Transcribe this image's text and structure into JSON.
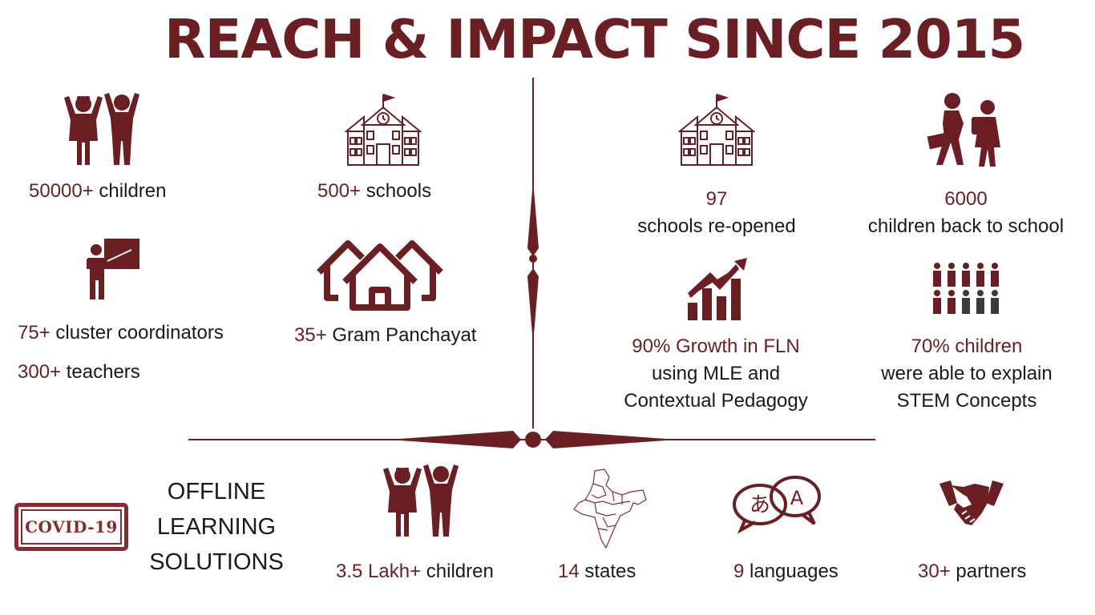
{
  "title": "REACH & IMPACT SINCE 2015",
  "left_stats": {
    "children": {
      "num": "50000+",
      "label": " children"
    },
    "schools": {
      "num": "500+",
      "label": " schools"
    },
    "coordinators": {
      "num": "75+",
      "label": " cluster coordinators"
    },
    "teachers": {
      "num": "300+",
      "label": " teachers"
    },
    "panchayat": {
      "num": "35+",
      "label": " Gram Panchayat"
    }
  },
  "right_stats": {
    "reopened": {
      "num": "97",
      "label": "schools re-opened"
    },
    "back_to_school": {
      "num": "6000",
      "label": "children back to school"
    },
    "fln": {
      "num": "90% Growth in FLN",
      "line2": "using MLE and",
      "line3": "Contextual Pedagogy"
    },
    "stem": {
      "num": "70% children",
      "line2": "were able to explain",
      "line3": "STEM Concepts"
    }
  },
  "covid": {
    "stamp": "COVID-19",
    "line1": "OFFLINE",
    "line2": "LEARNING",
    "line3": "SOLUTIONS"
  },
  "bottom_stats": {
    "lakh_children": {
      "num": "3.5 Lakh+",
      "label": " children"
    },
    "states": {
      "num": "14",
      "label": " states"
    },
    "languages": {
      "num": "9",
      "label": " languages"
    },
    "partners": {
      "num": "30+",
      "label": " partners"
    }
  },
  "language_glyphs": {
    "left": "あ",
    "right": "A"
  },
  "colors": {
    "accent": "#6b1f22",
    "dark": "#3b3b3b"
  }
}
